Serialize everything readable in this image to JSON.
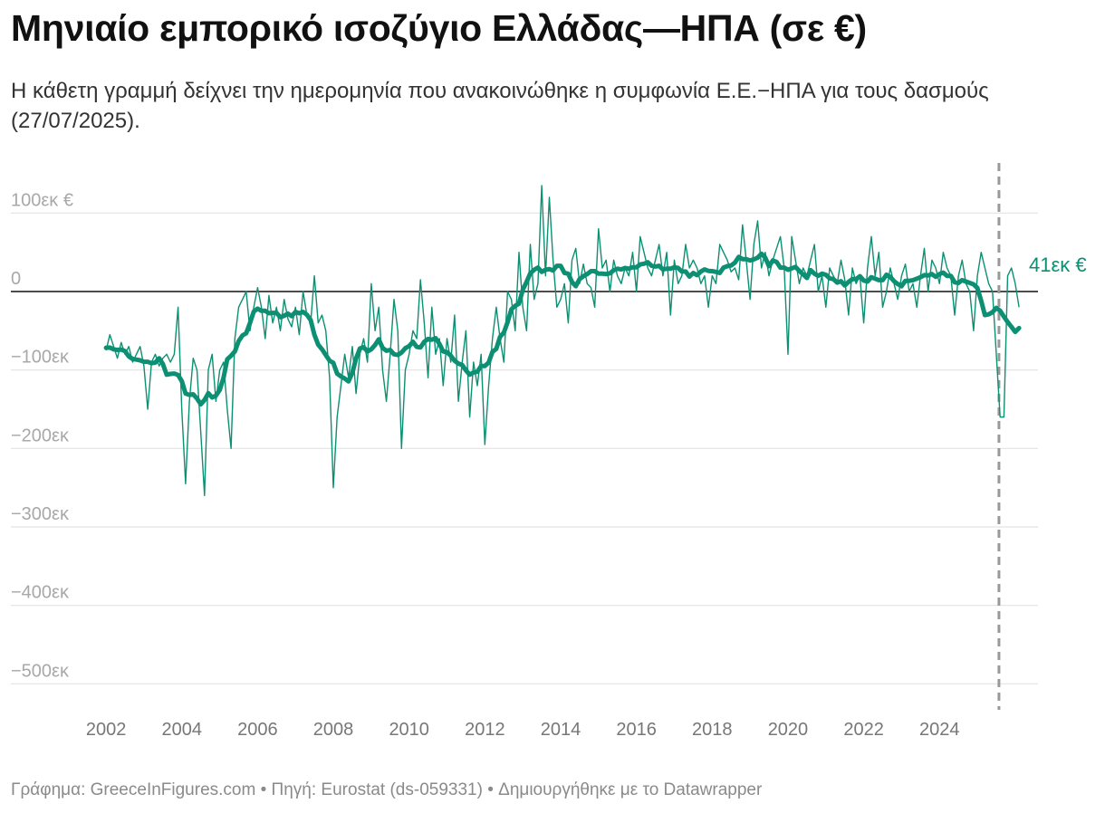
{
  "header": {
    "title": "Μηνιαίο εμπορικό ισοζύγιο Ελλάδας—ΗΠΑ (σε €)",
    "subtitle": "Η κάθετη γραμμή δείχνει την ημερομηνία που ανακοινώθηκε η συμφωνία Ε.Ε.−ΗΠΑ για τους δασμούς (27/07/2025)."
  },
  "footer": {
    "text": "Γράφημα: GreeceInFigures.com • Πηγή: Eurostat (ds-059331) • Δημιουργήθηκε με το Datawrapper"
  },
  "chart_data": {
    "type": "line",
    "title": "Μηνιαίο εμπορικό ισοζύγιο Ελλάδας—ΗΠΑ (σε €)",
    "subtitle": "Η κάθετη γραμμή δείχνει την ημερομηνία που ανακοινώθηκε η συμφωνία Ε.Ε.−ΗΠΑ για τους δασμούς (27/07/2025).",
    "xlabel": "",
    "ylabel": "",
    "units": "εκ €",
    "xlim": [
      2001.5,
      2026.2
    ],
    "ylim": [
      -520,
      130
    ],
    "x_ticks": [
      2002,
      2004,
      2006,
      2008,
      2010,
      2012,
      2014,
      2016,
      2018,
      2020,
      2022,
      2024
    ],
    "x_tick_labels": [
      "2002",
      "2004",
      "2006",
      "2008",
      "2010",
      "2012",
      "2014",
      "2016",
      "2018",
      "2020",
      "2022",
      "2024"
    ],
    "y_ticks": [
      100,
      0,
      -100,
      -200,
      -300,
      -400,
      -500
    ],
    "y_tick_labels": [
      "100εκ €",
      "0",
      "−100εκ",
      "−200εκ",
      "−300εκ",
      "−400εκ",
      "−500εκ"
    ],
    "grid": true,
    "zero_line": true,
    "colors": {
      "series": "#0c8f72",
      "grid": "#e2e2e2",
      "zero": "#111111",
      "marker": "#999999"
    },
    "end_label": "41εκ €",
    "vertical_marker": {
      "x": 2025.57,
      "style": "dashed"
    },
    "series": [
      {
        "style": "thin",
        "points": [
          [
            2002.0,
            -75
          ],
          [
            2002.1,
            -55
          ],
          [
            2002.2,
            -70
          ],
          [
            2002.3,
            -85
          ],
          [
            2002.4,
            -65
          ],
          [
            2002.5,
            -80
          ],
          [
            2002.6,
            -70
          ],
          [
            2002.7,
            -90
          ],
          [
            2002.8,
            -80
          ],
          [
            2002.9,
            -70
          ],
          [
            2003.0,
            -95
          ],
          [
            2003.1,
            -150
          ],
          [
            2003.2,
            -90
          ],
          [
            2003.3,
            -80
          ],
          [
            2003.4,
            -95
          ],
          [
            2003.5,
            -85
          ],
          [
            2003.6,
            -80
          ],
          [
            2003.7,
            -90
          ],
          [
            2003.8,
            -80
          ],
          [
            2003.9,
            -20
          ],
          [
            2004.0,
            -150
          ],
          [
            2004.1,
            -245
          ],
          [
            2004.2,
            -140
          ],
          [
            2004.3,
            -85
          ],
          [
            2004.4,
            -100
          ],
          [
            2004.5,
            -180
          ],
          [
            2004.6,
            -260
          ],
          [
            2004.7,
            -100
          ],
          [
            2004.8,
            -80
          ],
          [
            2004.9,
            -140
          ],
          [
            2005.0,
            -100
          ],
          [
            2005.1,
            -90
          ],
          [
            2005.2,
            -150
          ],
          [
            2005.3,
            -200
          ],
          [
            2005.4,
            -60
          ],
          [
            2005.5,
            -20
          ],
          [
            2005.6,
            -10
          ],
          [
            2005.7,
            0
          ],
          [
            2005.8,
            -50
          ],
          [
            2005.9,
            -20
          ],
          [
            2006.0,
            5
          ],
          [
            2006.1,
            -20
          ],
          [
            2006.2,
            -60
          ],
          [
            2006.3,
            -5
          ],
          [
            2006.4,
            -40
          ],
          [
            2006.5,
            -20
          ],
          [
            2006.6,
            -50
          ],
          [
            2006.7,
            -10
          ],
          [
            2006.8,
            -35
          ],
          [
            2006.9,
            -45
          ],
          [
            2007.0,
            -20
          ],
          [
            2007.1,
            -55
          ],
          [
            2007.2,
            0
          ],
          [
            2007.3,
            -30
          ],
          [
            2007.4,
            -40
          ],
          [
            2007.5,
            20
          ],
          [
            2007.6,
            -40
          ],
          [
            2007.7,
            -30
          ],
          [
            2007.8,
            -50
          ],
          [
            2007.9,
            -110
          ],
          [
            2008.0,
            -250
          ],
          [
            2008.1,
            -160
          ],
          [
            2008.2,
            -120
          ],
          [
            2008.3,
            -80
          ],
          [
            2008.4,
            -110
          ],
          [
            2008.5,
            -70
          ],
          [
            2008.6,
            -130
          ],
          [
            2008.7,
            -80
          ],
          [
            2008.8,
            -60
          ],
          [
            2008.9,
            -90
          ],
          [
            2009.0,
            10
          ],
          [
            2009.1,
            -50
          ],
          [
            2009.2,
            -20
          ],
          [
            2009.3,
            -100
          ],
          [
            2009.4,
            -140
          ],
          [
            2009.5,
            -80
          ],
          [
            2009.6,
            -10
          ],
          [
            2009.7,
            -50
          ],
          [
            2009.8,
            -200
          ],
          [
            2009.9,
            -100
          ],
          [
            2010.0,
            -80
          ],
          [
            2010.1,
            -50
          ],
          [
            2010.2,
            -60
          ],
          [
            2010.3,
            15
          ],
          [
            2010.4,
            -40
          ],
          [
            2010.5,
            -110
          ],
          [
            2010.6,
            -20
          ],
          [
            2010.7,
            -80
          ],
          [
            2010.8,
            -60
          ],
          [
            2010.9,
            -120
          ],
          [
            2011.0,
            -60
          ],
          [
            2011.1,
            -90
          ],
          [
            2011.2,
            -30
          ],
          [
            2011.3,
            -140
          ],
          [
            2011.4,
            -90
          ],
          [
            2011.5,
            -50
          ],
          [
            2011.6,
            -160
          ],
          [
            2011.7,
            -90
          ],
          [
            2011.8,
            -120
          ],
          [
            2011.9,
            -80
          ],
          [
            2012.0,
            -195
          ],
          [
            2012.1,
            -120
          ],
          [
            2012.2,
            -60
          ],
          [
            2012.3,
            -20
          ],
          [
            2012.4,
            -60
          ],
          [
            2012.5,
            -90
          ],
          [
            2012.6,
            0
          ],
          [
            2012.7,
            -10
          ],
          [
            2012.8,
            -50
          ],
          [
            2012.9,
            50
          ],
          [
            2013.0,
            -20
          ],
          [
            2013.1,
            -50
          ],
          [
            2013.2,
            60
          ],
          [
            2013.3,
            -10
          ],
          [
            2013.4,
            10
          ],
          [
            2013.5,
            135
          ],
          [
            2013.6,
            20
          ],
          [
            2013.7,
            120
          ],
          [
            2013.8,
            40
          ],
          [
            2013.9,
            -20
          ],
          [
            2014.0,
            -10
          ],
          [
            2014.1,
            10
          ],
          [
            2014.2,
            -40
          ],
          [
            2014.3,
            40
          ],
          [
            2014.4,
            55
          ],
          [
            2014.5,
            10
          ],
          [
            2014.6,
            35
          ],
          [
            2014.7,
            10
          ],
          [
            2014.8,
            5
          ],
          [
            2014.9,
            -20
          ],
          [
            2015.0,
            80
          ],
          [
            2015.1,
            30
          ],
          [
            2015.2,
            40
          ],
          [
            2015.3,
            0
          ],
          [
            2015.4,
            40
          ],
          [
            2015.5,
            20
          ],
          [
            2015.6,
            10
          ],
          [
            2015.7,
            30
          ],
          [
            2015.8,
            20
          ],
          [
            2015.9,
            50
          ],
          [
            2016.0,
            0
          ],
          [
            2016.1,
            70
          ],
          [
            2016.2,
            50
          ],
          [
            2016.3,
            30
          ],
          [
            2016.4,
            20
          ],
          [
            2016.5,
            40
          ],
          [
            2016.6,
            60
          ],
          [
            2016.7,
            20
          ],
          [
            2016.8,
            50
          ],
          [
            2016.9,
            -30
          ],
          [
            2017.0,
            40
          ],
          [
            2017.1,
            10
          ],
          [
            2017.2,
            20
          ],
          [
            2017.3,
            60
          ],
          [
            2017.4,
            30
          ],
          [
            2017.5,
            40
          ],
          [
            2017.6,
            30
          ],
          [
            2017.7,
            10
          ],
          [
            2017.8,
            20
          ],
          [
            2017.9,
            -20
          ],
          [
            2018.0,
            20
          ],
          [
            2018.1,
            10
          ],
          [
            2018.2,
            60
          ],
          [
            2018.3,
            50
          ],
          [
            2018.4,
            40
          ],
          [
            2018.5,
            25
          ],
          [
            2018.6,
            30
          ],
          [
            2018.7,
            15
          ],
          [
            2018.8,
            85
          ],
          [
            2018.9,
            40
          ],
          [
            2019.0,
            -10
          ],
          [
            2019.1,
            60
          ],
          [
            2019.2,
            90
          ],
          [
            2019.3,
            30
          ],
          [
            2019.4,
            50
          ],
          [
            2019.5,
            20
          ],
          [
            2019.6,
            40
          ],
          [
            2019.7,
            55
          ],
          [
            2019.8,
            70
          ],
          [
            2019.9,
            30
          ],
          [
            2020.0,
            -80
          ],
          [
            2020.1,
            70
          ],
          [
            2020.2,
            40
          ],
          [
            2020.3,
            10
          ],
          [
            2020.4,
            30
          ],
          [
            2020.5,
            20
          ],
          [
            2020.6,
            40
          ],
          [
            2020.7,
            60
          ],
          [
            2020.8,
            0
          ],
          [
            2020.9,
            20
          ],
          [
            2021.0,
            -20
          ],
          [
            2021.1,
            30
          ],
          [
            2021.2,
            20
          ],
          [
            2021.3,
            10
          ],
          [
            2021.4,
            40
          ],
          [
            2021.5,
            15
          ],
          [
            2021.6,
            -30
          ],
          [
            2021.7,
            30
          ],
          [
            2021.8,
            10
          ],
          [
            2021.9,
            20
          ],
          [
            2022.0,
            -40
          ],
          [
            2022.1,
            30
          ],
          [
            2022.2,
            70
          ],
          [
            2022.3,
            20
          ],
          [
            2022.4,
            50
          ],
          [
            2022.5,
            -20
          ],
          [
            2022.6,
            0
          ],
          [
            2022.7,
            30
          ],
          [
            2022.8,
            10
          ],
          [
            2022.9,
            -10
          ],
          [
            2023.0,
            20
          ],
          [
            2023.1,
            35
          ],
          [
            2023.2,
            0
          ],
          [
            2023.3,
            10
          ],
          [
            2023.4,
            -20
          ],
          [
            2023.5,
            20
          ],
          [
            2023.6,
            55
          ],
          [
            2023.7,
            0
          ],
          [
            2023.8,
            40
          ],
          [
            2023.9,
            30
          ],
          [
            2024.0,
            10
          ],
          [
            2024.1,
            50
          ],
          [
            2024.2,
            30
          ],
          [
            2024.3,
            20
          ],
          [
            2024.4,
            -30
          ],
          [
            2024.5,
            20
          ],
          [
            2024.6,
            40
          ],
          [
            2024.7,
            10
          ],
          [
            2024.8,
            0
          ],
          [
            2024.9,
            -50
          ],
          [
            2025.0,
            20
          ],
          [
            2025.1,
            50
          ],
          [
            2025.2,
            30
          ],
          [
            2025.3,
            10
          ],
          [
            2025.4,
            0
          ],
          [
            2025.5,
            -80
          ],
          [
            2025.6,
            -160
          ],
          [
            2025.7,
            -160
          ],
          [
            2025.8,
            20
          ],
          [
            2025.9,
            30
          ],
          [
            2026.0,
            10
          ],
          [
            2026.1,
            -20
          ]
        ]
      },
      {
        "style": "thick",
        "points": []
      }
    ]
  }
}
